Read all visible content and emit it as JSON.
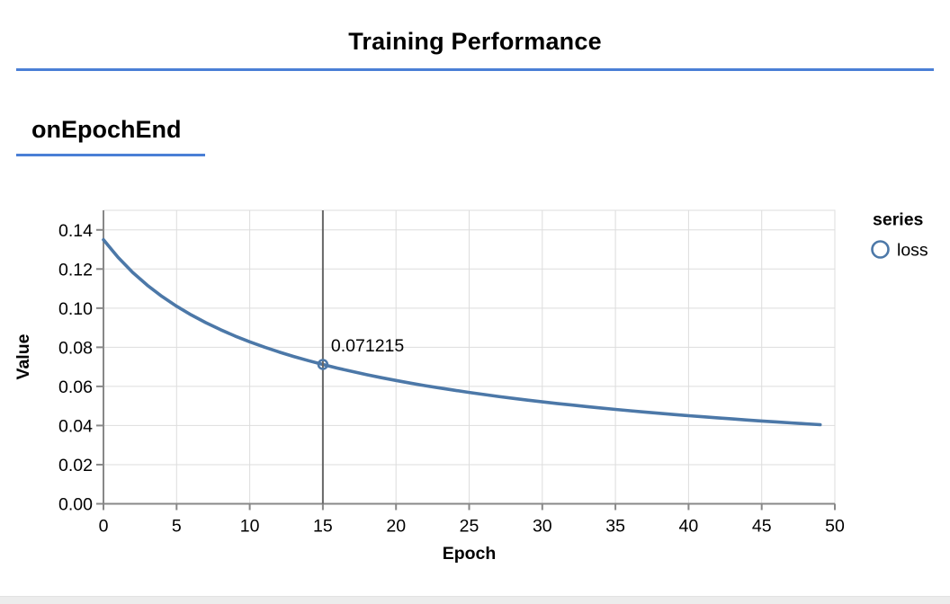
{
  "header": {
    "title": "Training Performance"
  },
  "section": {
    "title": "onEpochEnd"
  },
  "colors": {
    "accent_rule": "#4a7fd6",
    "series": "#4c78a8",
    "grid": "#dddddd",
    "axis": "#888888",
    "hover_rule": "#666666",
    "text": "#000000"
  },
  "chart_data": {
    "type": "line",
    "title": "",
    "xlabel": "Epoch",
    "ylabel": "Value",
    "xlim": [
      0,
      50
    ],
    "ylim": [
      0,
      0.15
    ],
    "x_ticks": [
      0,
      5,
      10,
      15,
      20,
      25,
      30,
      35,
      40,
      45,
      50
    ],
    "y_ticks": [
      0,
      0.02,
      0.04,
      0.06,
      0.08,
      0.1,
      0.12,
      0.14
    ],
    "y_tick_labels": [
      "0.00",
      "0.02",
      "0.04",
      "0.06",
      "0.08",
      "0.10",
      "0.12",
      "0.14"
    ],
    "grid": true,
    "legend": {
      "title": "series",
      "position": "right",
      "entries": [
        {
          "label": "loss",
          "symbol": "open-circle"
        }
      ]
    },
    "series": [
      {
        "name": "loss",
        "x_is_epoch_index": true,
        "values": [
          0.13499,
          0.12591,
          0.11824,
          0.11167,
          0.10597,
          0.10096,
          0.09652,
          0.09255,
          0.08898,
          0.08574,
          0.08279,
          0.08009,
          0.0776,
          0.0753,
          0.07317,
          0.071215,
          0.06934,
          0.06762,
          0.06599,
          0.06446,
          0.06303,
          0.06167,
          0.06038,
          0.05916,
          0.05801,
          0.05691,
          0.05586,
          0.05486,
          0.0539,
          0.05299,
          0.05212,
          0.05128,
          0.05047,
          0.0497,
          0.04896,
          0.04824,
          0.04756,
          0.04689,
          0.04625,
          0.04564,
          0.04504,
          0.04446,
          0.0439,
          0.04336,
          0.04284,
          0.04233,
          0.04184,
          0.04136,
          0.04089,
          0.04044
        ]
      }
    ],
    "marker": {
      "epoch": 15,
      "value": 0.071215,
      "label": "0.071215"
    }
  }
}
